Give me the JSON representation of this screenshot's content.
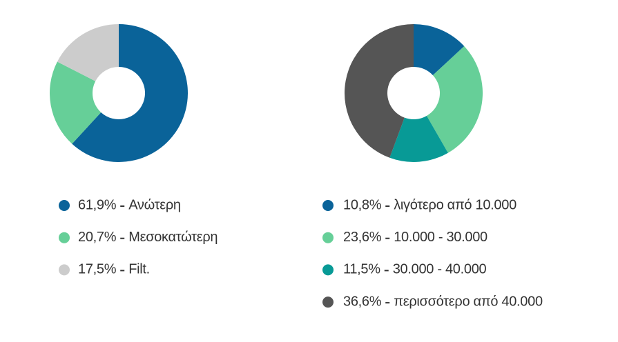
{
  "chart_data": [
    {
      "type": "pie",
      "categories": [
        "Ανώτερη",
        "Μεσοκατώτερη",
        "Filt."
      ],
      "values": [
        61.9,
        20.7,
        17.5
      ],
      "value_labels": [
        "61,9%",
        "20,7%",
        "17,5%"
      ],
      "colors": [
        "#0a6399",
        "#66cf98",
        "#cccccc"
      ]
    },
    {
      "type": "pie",
      "categories": [
        "λιγότερο από 10.000",
        "10.000 - 30.000",
        "30.000 - 40.000",
        "περισσότερο από 40.000"
      ],
      "values": [
        10.8,
        23.6,
        11.5,
        36.6
      ],
      "value_labels": [
        "10,8%",
        "23,6%",
        "11,5%",
        "36,6%"
      ],
      "colors": [
        "#0a6399",
        "#66cf98",
        "#089a96",
        "#555555"
      ]
    }
  ]
}
